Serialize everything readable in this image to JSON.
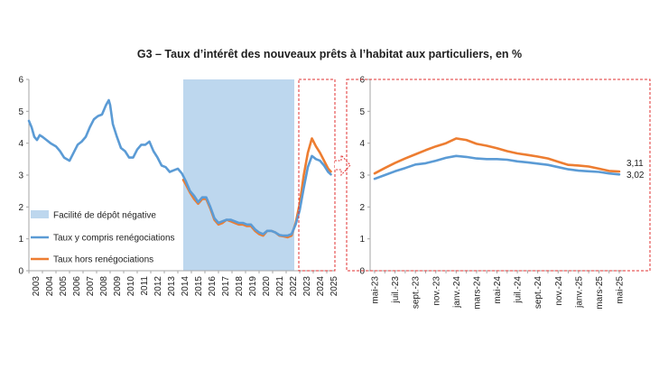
{
  "title": "G3 – Taux d’intérêt des nouveaux prêts à l’habitat aux particuliers, en %",
  "colors": {
    "series_incl": "#5b9bd5",
    "series_excl": "#ed7d31",
    "shade": "#bdd7ee",
    "highlight": "#e03030",
    "axis": "#a6a6a6"
  },
  "chart_data": [
    {
      "type": "line",
      "ylim": [
        0,
        6
      ],
      "yticks": [
        "0",
        "1",
        "2",
        "3",
        "4",
        "5",
        "6"
      ],
      "xlim": [
        2003,
        2025.6
      ],
      "xticks": [
        "2003",
        "2004",
        "2005",
        "2006",
        "2007",
        "2008",
        "2009",
        "2010",
        "2011",
        "2012",
        "2013",
        "2014",
        "2015",
        "2016",
        "2017",
        "2018",
        "2019",
        "2020",
        "2021",
        "2022",
        "2023",
        "2024",
        "2025"
      ],
      "shaded_period": {
        "label": "Facilité de dépôt négative",
        "start": 2014.4,
        "end": 2022.6
      },
      "legend": [
        "Facilité de dépôt négative",
        "Taux y compris renégociations",
        "Taux hors renégociations"
      ],
      "series": [
        {
          "name": "Taux y compris renégociations",
          "x": [
            2003.0,
            2003.2,
            2003.4,
            2003.6,
            2003.8,
            2004.0,
            2004.3,
            2004.6,
            2005.0,
            2005.3,
            2005.6,
            2006.0,
            2006.3,
            2006.6,
            2006.9,
            2007.2,
            2007.5,
            2007.8,
            2008.1,
            2008.4,
            2008.7,
            2008.9,
            2009.0,
            2009.2,
            2009.5,
            2009.8,
            2010.1,
            2010.4,
            2010.7,
            2011.0,
            2011.3,
            2011.6,
            2011.9,
            2012.2,
            2012.5,
            2012.8,
            2013.1,
            2013.4,
            2013.7,
            2014.0,
            2014.3,
            2014.6,
            2014.9,
            2015.2,
            2015.5,
            2015.8,
            2016.1,
            2016.4,
            2016.7,
            2017.0,
            2017.3,
            2017.6,
            2017.9,
            2018.2,
            2018.5,
            2018.8,
            2019.1,
            2019.4,
            2019.7,
            2020.0,
            2020.3,
            2020.6,
            2020.9,
            2021.2,
            2021.5,
            2021.8,
            2022.1,
            2022.4,
            2022.7,
            2023.0,
            2023.3,
            2023.6,
            2023.9,
            2024.2,
            2024.5,
            2024.8,
            2025.1,
            2025.3
          ],
          "y": [
            4.7,
            4.5,
            4.2,
            4.1,
            4.25,
            4.2,
            4.1,
            4.0,
            3.9,
            3.75,
            3.55,
            3.45,
            3.7,
            3.95,
            4.05,
            4.2,
            4.5,
            4.75,
            4.85,
            4.9,
            5.2,
            5.35,
            5.2,
            4.6,
            4.2,
            3.85,
            3.75,
            3.55,
            3.55,
            3.8,
            3.95,
            3.95,
            4.05,
            3.75,
            3.55,
            3.3,
            3.25,
            3.1,
            3.15,
            3.2,
            3.05,
            2.8,
            2.5,
            2.35,
            2.15,
            2.3,
            2.3,
            2.0,
            1.65,
            1.5,
            1.55,
            1.6,
            1.6,
            1.55,
            1.5,
            1.5,
            1.45,
            1.45,
            1.3,
            1.2,
            1.15,
            1.25,
            1.25,
            1.2,
            1.12,
            1.1,
            1.1,
            1.15,
            1.45,
            1.9,
            2.6,
            3.25,
            3.6,
            3.5,
            3.45,
            3.3,
            3.1,
            3.02
          ]
        },
        {
          "name": "Taux hors renégociations",
          "x": [
            2014.4,
            2014.6,
            2014.9,
            2015.2,
            2015.5,
            2015.8,
            2016.1,
            2016.4,
            2016.7,
            2017.0,
            2017.3,
            2017.6,
            2017.9,
            2018.2,
            2018.5,
            2018.8,
            2019.1,
            2019.4,
            2019.7,
            2020.0,
            2020.3,
            2020.6,
            2020.9,
            2021.2,
            2021.5,
            2021.8,
            2022.1,
            2022.4,
            2022.7,
            2023.0,
            2023.3,
            2023.6,
            2023.9,
            2024.2,
            2024.5,
            2024.8,
            2025.1,
            2025.3
          ],
          "y": [
            2.85,
            2.7,
            2.45,
            2.25,
            2.1,
            2.25,
            2.25,
            1.95,
            1.6,
            1.45,
            1.5,
            1.6,
            1.55,
            1.5,
            1.45,
            1.45,
            1.4,
            1.4,
            1.25,
            1.15,
            1.1,
            1.25,
            1.25,
            1.2,
            1.1,
            1.08,
            1.05,
            1.1,
            1.5,
            2.1,
            3.0,
            3.7,
            4.15,
            3.9,
            3.7,
            3.45,
            3.2,
            3.11
          ]
        }
      ]
    },
    {
      "type": "line",
      "ylim": [
        0,
        6
      ],
      "yticks": [
        "0",
        "1",
        "2",
        "3",
        "4",
        "5",
        "6"
      ],
      "categories": [
        "mai-23",
        "juin-23",
        "juil.-23",
        "août-23",
        "sept.-23",
        "oct.-23",
        "nov.-23",
        "déc.-23",
        "janv.-24",
        "févr.-24",
        "mars-24",
        "avr.-24",
        "mai-24",
        "juin-24",
        "juil.-24",
        "août-24",
        "sept.-24",
        "oct.-24",
        "nov.-24",
        "déc.-24",
        "janv.-25",
        "févr.-25",
        "mars-25",
        "avr.-25",
        "mai-25"
      ],
      "xtick_labels": [
        "mai-23",
        "",
        "juil.-23",
        "",
        "sept.-23",
        "",
        "nov.-23",
        "",
        "janv.-24",
        "",
        "mars-24",
        "",
        "mai-24",
        "",
        "juil.-24",
        "",
        "sept.-24",
        "",
        "nov.-24",
        "",
        "janv.-25",
        "",
        "mars-25",
        "",
        "mai-25"
      ],
      "end_labels": [
        "3,11",
        "3,02"
      ],
      "series": [
        {
          "name": "Taux y compris renégociations",
          "values": [
            2.88,
            3.0,
            3.12,
            3.22,
            3.33,
            3.37,
            3.45,
            3.54,
            3.6,
            3.57,
            3.52,
            3.5,
            3.5,
            3.48,
            3.43,
            3.4,
            3.36,
            3.32,
            3.25,
            3.18,
            3.14,
            3.12,
            3.1,
            3.05,
            3.02
          ]
        },
        {
          "name": "Taux hors renégociations",
          "values": [
            3.05,
            3.22,
            3.38,
            3.52,
            3.65,
            3.78,
            3.9,
            4.0,
            4.15,
            4.1,
            3.98,
            3.92,
            3.84,
            3.75,
            3.68,
            3.63,
            3.58,
            3.52,
            3.42,
            3.32,
            3.3,
            3.27,
            3.2,
            3.13,
            3.11
          ]
        }
      ]
    }
  ]
}
